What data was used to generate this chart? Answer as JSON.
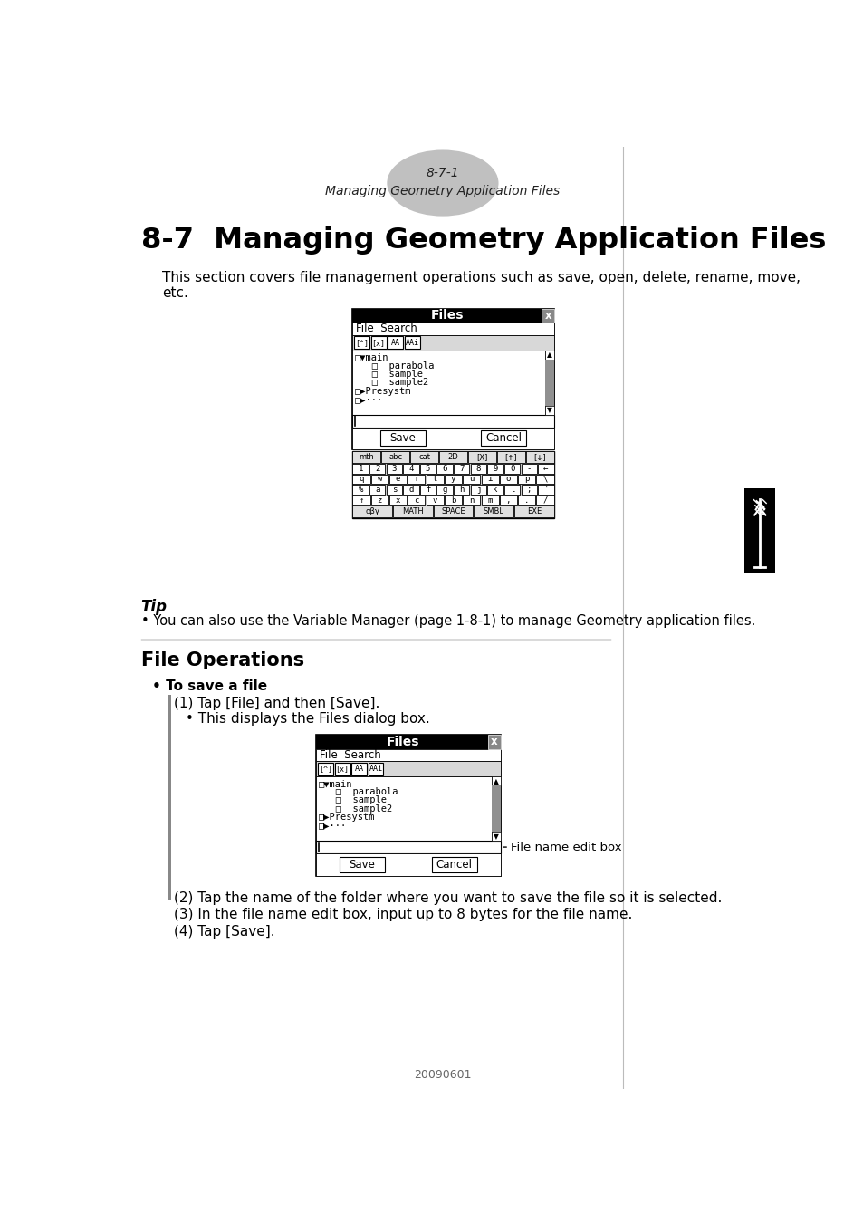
{
  "page_label": "8-7-1",
  "page_subtitle": "Managing Geometry Application Files",
  "main_title": "8-7  Managing Geometry Application Files",
  "intro_line1": "This section covers file management operations such as save, open, delete, rename, move,",
  "intro_line2": "etc.",
  "tip_title": "Tip",
  "tip_bullet": "• You can also use the Variable Manager (page 1-8-1) to manage Geometry application files.",
  "file_ops_title": "File Operations",
  "save_bullet": "• To save a file",
  "step1": "(1) Tap [File] and then [Save].",
  "step1b": "• This displays the Files dialog box.",
  "step2": "(2) Tap the name of the folder where you want to save the file so it is selected.",
  "step3": "(3) In the file name edit box, input up to 8 bytes for the file name.",
  "step4": "(4) Tap [Save].",
  "ann_text": "File name edit box",
  "footer": "20090601",
  "bg_color": "#ffffff",
  "text_color": "#000000",
  "sidebar_color": "#000000",
  "header_ellipse_color": "#c0c0c0"
}
